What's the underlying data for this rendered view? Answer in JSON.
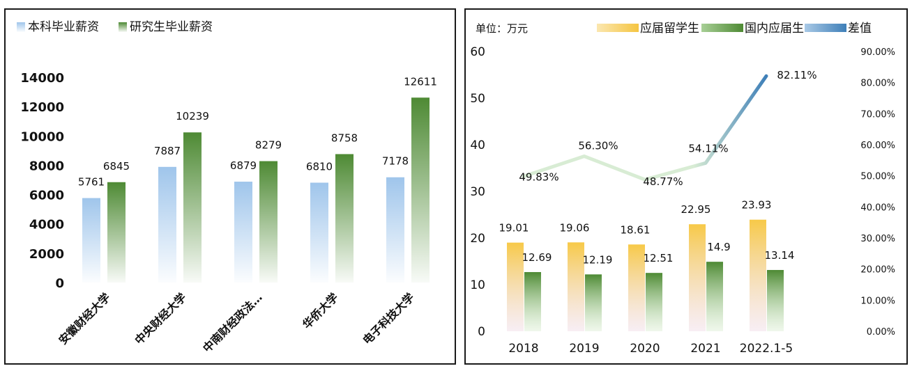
{
  "chart_data": [
    {
      "type": "bar",
      "categories": [
        "安徽财经大学",
        "中央财经大学",
        "中南财经政法…",
        "华侨大学",
        "电子科技大学"
      ],
      "series": [
        {
          "name": "本科毕业薪资",
          "values": [
            5761,
            7887,
            6879,
            6810,
            7178
          ],
          "color": "#9fc5eb"
        },
        {
          "name": "研究生毕业薪资",
          "values": [
            6845,
            10239,
            8279,
            8758,
            12611
          ],
          "color": "#4e8a34"
        }
      ],
      "ylim": [
        0,
        14000
      ],
      "yticks": [
        "0",
        "2000",
        "4000",
        "6000",
        "8000",
        "10000",
        "12000",
        "14000"
      ],
      "legend_position": "top-left",
      "grid": false
    },
    {
      "type": "bar+line",
      "unit_label": "单位：万元",
      "categories": [
        "2018",
        "2019",
        "2020",
        "2021",
        "2022.1-5"
      ],
      "series": [
        {
          "name": "应届留学生",
          "values": [
            19.01,
            19.06,
            18.61,
            22.95,
            23.93
          ],
          "color": "#f5c542"
        },
        {
          "name": "国内应届生",
          "values": [
            12.69,
            12.19,
            12.51,
            14.9,
            13.14
          ],
          "color": "#4e8a34"
        },
        {
          "name": "差值",
          "values": [
            49.83,
            56.3,
            48.77,
            54.11,
            82.11
          ],
          "labels": [
            "49.83%",
            "56.30%",
            "48.77%",
            "54.11%",
            "82.11%"
          ],
          "color": "#3e7fb8",
          "axis": "right"
        }
      ],
      "ylim_left": [
        0,
        60
      ],
      "yticks_left": [
        "0",
        "10",
        "20",
        "30",
        "40",
        "50",
        "60"
      ],
      "ylim_right": [
        0,
        90
      ],
      "yticks_right": [
        "0.00%",
        "10.00%",
        "20.00%",
        "30.00%",
        "40.00%",
        "50.00%",
        "60.00%",
        "70.00%",
        "80.00%",
        "90.00%"
      ],
      "legend_position": "top-right",
      "grid": false
    }
  ]
}
